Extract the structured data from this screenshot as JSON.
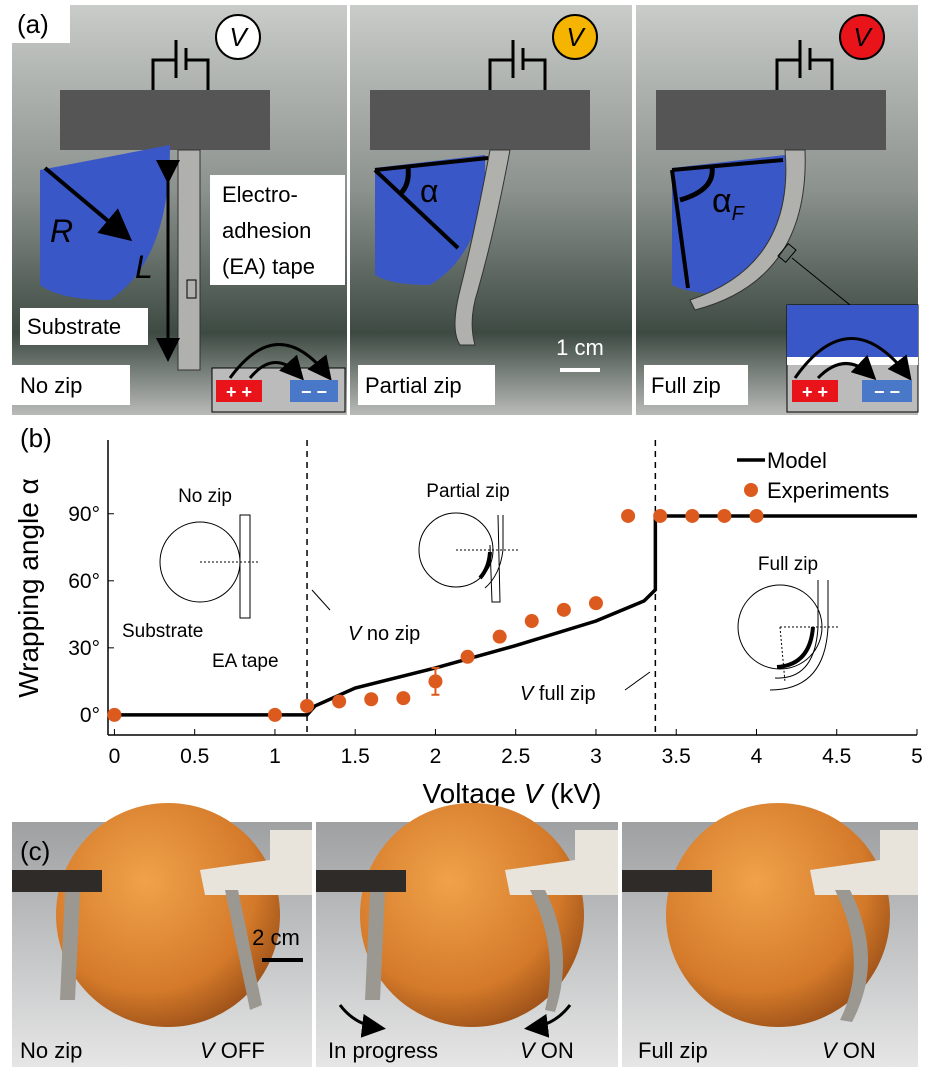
{
  "panel_a": {
    "label": "(a)",
    "frames": [
      {
        "voltage_symbol": "V",
        "indicator_color": "#ffffff",
        "caption": "No zip"
      },
      {
        "voltage_symbol": "V",
        "indicator_color": "#f5b400",
        "caption": "Partial zip"
      },
      {
        "voltage_symbol": "V",
        "indicator_color": "#e8141a",
        "caption": "Full zip"
      }
    ],
    "radius_label": "R",
    "length_label": "L",
    "tape_label": [
      "Electro-",
      "adhesion",
      "(EA) tape"
    ],
    "substrate_label": "Substrate",
    "alpha": "α",
    "alpha_full": "α",
    "alpha_full_sub": "F",
    "scale_bar": "1 cm",
    "electrode_plus": "+ +",
    "electrode_minus": "− −"
  },
  "chart_data": {
    "type": "line",
    "panel_label": "(b)",
    "x_label": {
      "text": "Voltage ",
      "var": "V",
      "unit": " (kV)"
    },
    "y_label": "Wrapping angle α",
    "xlim": [
      -0.04,
      5
    ],
    "ylim": [
      -9,
      123
    ],
    "xticks": [
      0,
      0.5,
      1,
      1.5,
      2,
      2.5,
      3,
      3.5,
      4,
      4.5,
      5
    ],
    "yticks": [
      {
        "value": 0,
        "label": "0°"
      },
      {
        "value": 30,
        "label": "30°"
      },
      {
        "value": 60,
        "label": "60°"
      },
      {
        "value": 90,
        "label": "90°"
      }
    ],
    "vlines": [
      1.2,
      3.37
    ],
    "series": [
      {
        "name": "Model",
        "color": "#000000",
        "mode": "line",
        "x": [
          0,
          1.2,
          1.25,
          1.5,
          2,
          2.5,
          3,
          3.3,
          3.37,
          3.37,
          5
        ],
        "values": [
          0,
          0,
          4,
          12,
          21,
          31,
          42,
          51,
          56,
          89,
          89
        ]
      },
      {
        "name": "Experiments",
        "color": "#dd5a1f",
        "mode": "markers",
        "x": [
          0,
          1,
          1.2,
          1.4,
          1.6,
          1.8,
          2,
          2.2,
          2.4,
          2.6,
          2.8,
          3,
          3.2,
          3.4,
          3.6,
          3.8,
          4
        ],
        "values": [
          0,
          0,
          4,
          6,
          7,
          7.5,
          15,
          26,
          35,
          42,
          47,
          50,
          89,
          89,
          89,
          89,
          89
        ],
        "errors": [
          null,
          null,
          null,
          null,
          null,
          null,
          6,
          null,
          null,
          null,
          null,
          null,
          null,
          null,
          null,
          null,
          null
        ]
      }
    ],
    "annotations": [
      {
        "var": "V",
        "text": " no zip"
      },
      {
        "var": "V",
        "text": " full zip"
      }
    ],
    "insets": {
      "no_zip": "No zip",
      "substrate": "Substrate",
      "ea_tape": "EA tape",
      "partial_zip": "Partial zip",
      "full_zip": "Full zip"
    }
  },
  "panel_c": {
    "label": "(c)",
    "scale_bar": "2 cm",
    "frames": [
      {
        "caption": "No zip",
        "var": "V",
        "state": " OFF"
      },
      {
        "caption": "In progress",
        "var": "V",
        "state": " ON"
      },
      {
        "caption": "Full zip",
        "var": "V",
        "state": " ON"
      }
    ]
  }
}
